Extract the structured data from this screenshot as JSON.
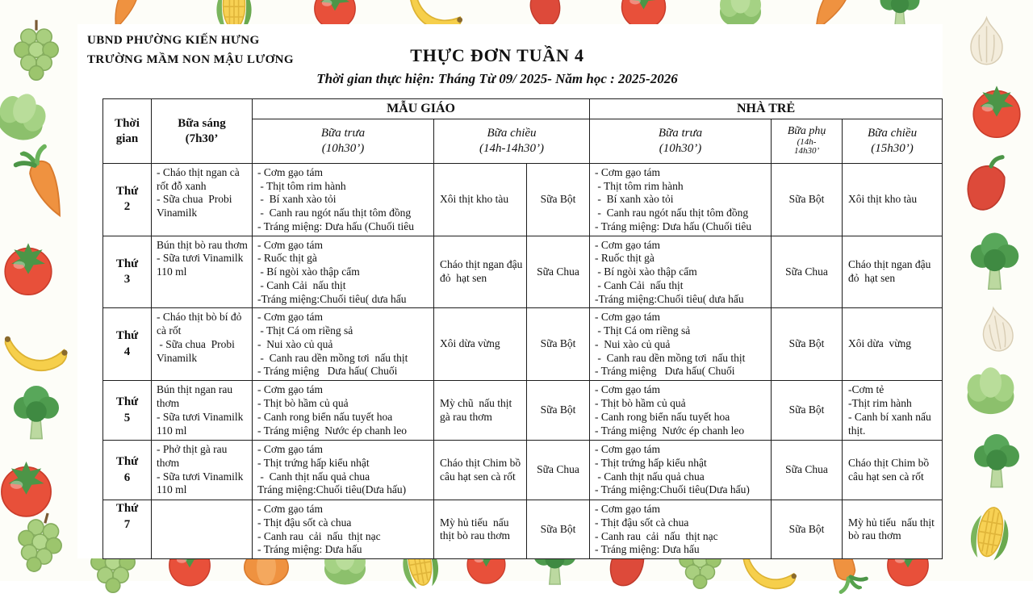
{
  "header": {
    "org_line1": "UBND PHƯỜNG KIẾN HƯNG",
    "org_line2": "TRƯỜNG MẦM NON MẬU LƯƠNG",
    "title": "THỰC ĐƠN TUẦN 4",
    "subtitle": "Thời gian thực hiện: Tháng Từ 09/ 2025- Năm học : 2025-2026"
  },
  "table": {
    "headers": {
      "time": "Thời\ngian",
      "breakfast": "Bữa sáng\n(7h30’",
      "group_mau_giao": "MẪU GIÁO",
      "group_nha_tre": "NHÀ TRẺ",
      "mg_lunch": "Bữa trưa\n(10h30’)",
      "mg_afternoon": "Bữa chiều\n(14h-14h30’)",
      "nt_lunch": "Bữa trưa\n(10h30’)",
      "nt_snack_title": "Bữa phụ",
      "nt_snack_time": "(14h-\n14h30’",
      "nt_afternoon": "Bữa chiều\n(15h30’)"
    },
    "rows": [
      {
        "day": [
          "Thứ",
          "2"
        ],
        "breakfast": [
          "- Cháo thịt ngan cà rốt đỗ xanh",
          "- Sữa chua  Probi Vinamilk"
        ],
        "mg_lunch": [
          "- Cơm gạo tám",
          " - Thịt tôm rim hành",
          " -  Bí xanh xào tỏi",
          " -  Canh rau ngót nấu thịt tôm đồng",
          "- Tráng miệng: Dưa hấu (Chuối tiêu"
        ],
        "mg_afternoon": "Xôi thịt kho tàu",
        "mg_drink": "Sữa Bột",
        "nt_lunch": [
          "- Cơm gạo tám",
          " - Thịt tôm rim hành",
          " -  Bí xanh xào tỏi",
          " -  Canh rau ngót nấu thịt tôm đồng",
          "- Tráng miệng: Dưa hấu (Chuối tiêu"
        ],
        "nt_snack": "Sữa Bột",
        "nt_afternoon": "Xôi thịt kho tàu"
      },
      {
        "day": [
          "Thứ",
          "3"
        ],
        "breakfast": [
          "Bún thịt bò rau thơm",
          "- Sữa tươi Vinamilk 110 ml"
        ],
        "mg_lunch": [
          "- Cơm gạo tám",
          "- Ruốc thịt gà",
          " - Bí ngòi xào thập cẩm",
          " - Canh Cải  nấu thịt",
          "-Tráng miệng:Chuối tiêu( dưa hấu"
        ],
        "mg_afternoon": "Cháo thịt ngan đậu đỏ  hạt sen",
        "mg_drink": "Sữa Chua",
        "nt_lunch": [
          "- Cơm gạo tám",
          "- Ruốc thịt gà",
          " - Bí ngòi xào thập cẩm",
          " - Canh Cải  nấu thịt",
          "-Tráng miệng:Chuối tiêu( dưa hấu"
        ],
        "nt_snack": "Sữa Chua",
        "nt_afternoon": "Cháo thịt ngan đậu đỏ  hạt sen"
      },
      {
        "day": [
          "Thứ",
          "4"
        ],
        "breakfast": [
          "- Cháo thịt bò bí đỏ cà rốt",
          " - Sữa chua  Probi Vinamilk"
        ],
        "mg_lunch": [
          "- Cơm gạo tám",
          " - Thịt Cá om riềng sả",
          "-  Nui xào củ quả",
          " -  Canh rau dền mồng tơi  nấu thịt",
          "- Tráng miệng   Dưa hấu( Chuối"
        ],
        "mg_afternoon": "Xôi dừa vừng",
        "mg_drink": "Sữa Bột",
        "nt_lunch": [
          "- Cơm gạo tám",
          " - Thịt Cá om riềng sả",
          "-  Nui xào củ quả",
          " -  Canh rau dền mồng tơi  nấu thịt",
          "- Tráng miệng   Dưa hấu( Chuối"
        ],
        "nt_snack": "Sữa Bột",
        "nt_afternoon": "Xôi dừa  vừng"
      },
      {
        "day": [
          "Thứ",
          "5"
        ],
        "breakfast": [
          "Bún thịt ngan rau thơm",
          "- Sữa tươi Vinamilk 110 ml"
        ],
        "mg_lunch": [
          "- Cơm gạo tám",
          "- Thịt bò hầm củ quả",
          "- Canh rong biển nấu tuyết hoa",
          "- Tráng miệng  Nước ép chanh leo"
        ],
        "mg_afternoon": "Mỳ chũ  nấu thịt gà rau thơm",
        "mg_drink": "Sữa Bột",
        "nt_lunch": [
          "- Cơm gạo tám",
          "- Thịt bò hầm củ quả",
          "- Canh rong biển nấu tuyết hoa",
          "- Tráng miệng  Nước ép chanh leo"
        ],
        "nt_snack": "Sữa Bột",
        "nt_afternoon": [
          "-Cơm tẻ",
          "-Thịt rim hành",
          "- Canh bí xanh nấu thịt."
        ]
      },
      {
        "day": [
          "Thứ",
          "6"
        ],
        "breakfast": [
          "- Phở thịt gà rau thơm",
          "- Sữa tươi Vinamilk 110 ml"
        ],
        "mg_lunch": [
          "- Cơm gạo tám",
          "- Thịt trứng hấp kiểu nhật",
          " -  Canh thịt nấu quả chua",
          "Tráng miệng:Chuối tiêu(Dưa hấu)"
        ],
        "mg_afternoon": "Cháo thịt Chim bồ câu hạt sen cà rốt",
        "mg_drink": "Sữa Chua",
        "nt_lunch": [
          "- Cơm gạo tám",
          "- Thịt trứng hấp kiểu nhật",
          " - Canh thịt nấu quả chua",
          "- Tráng miệng:Chuối tiêu(Dưa hấu)"
        ],
        "nt_snack": "Sữa Chua",
        "nt_afternoon": "Cháo thịt Chim bồ câu hạt sen cà rốt"
      },
      {
        "day": [
          "Thứ",
          "7"
        ],
        "breakfast": "",
        "mg_lunch": [
          "- Cơm gạo tám",
          "- Thịt đậu sốt cà chua",
          "- Canh rau  cải  nấu  thịt nạc",
          "- Tráng miệng: Dưa hấu"
        ],
        "mg_afternoon": "Mỳ hủ tiếu  nấu thịt bò rau thơm",
        "mg_drink": "Sữa Bột",
        "nt_lunch": [
          "- Cơm gạo tám",
          "- Thịt đậu sốt cà chua",
          "- Canh rau  cải  nấu  thịt nạc",
          "- Tráng miệng: Dưa hấu"
        ],
        "nt_snack": "Sữa Bột",
        "nt_afternoon": "Mỳ hủ tiếu  nấu thịt bò rau thơm"
      }
    ]
  }
}
